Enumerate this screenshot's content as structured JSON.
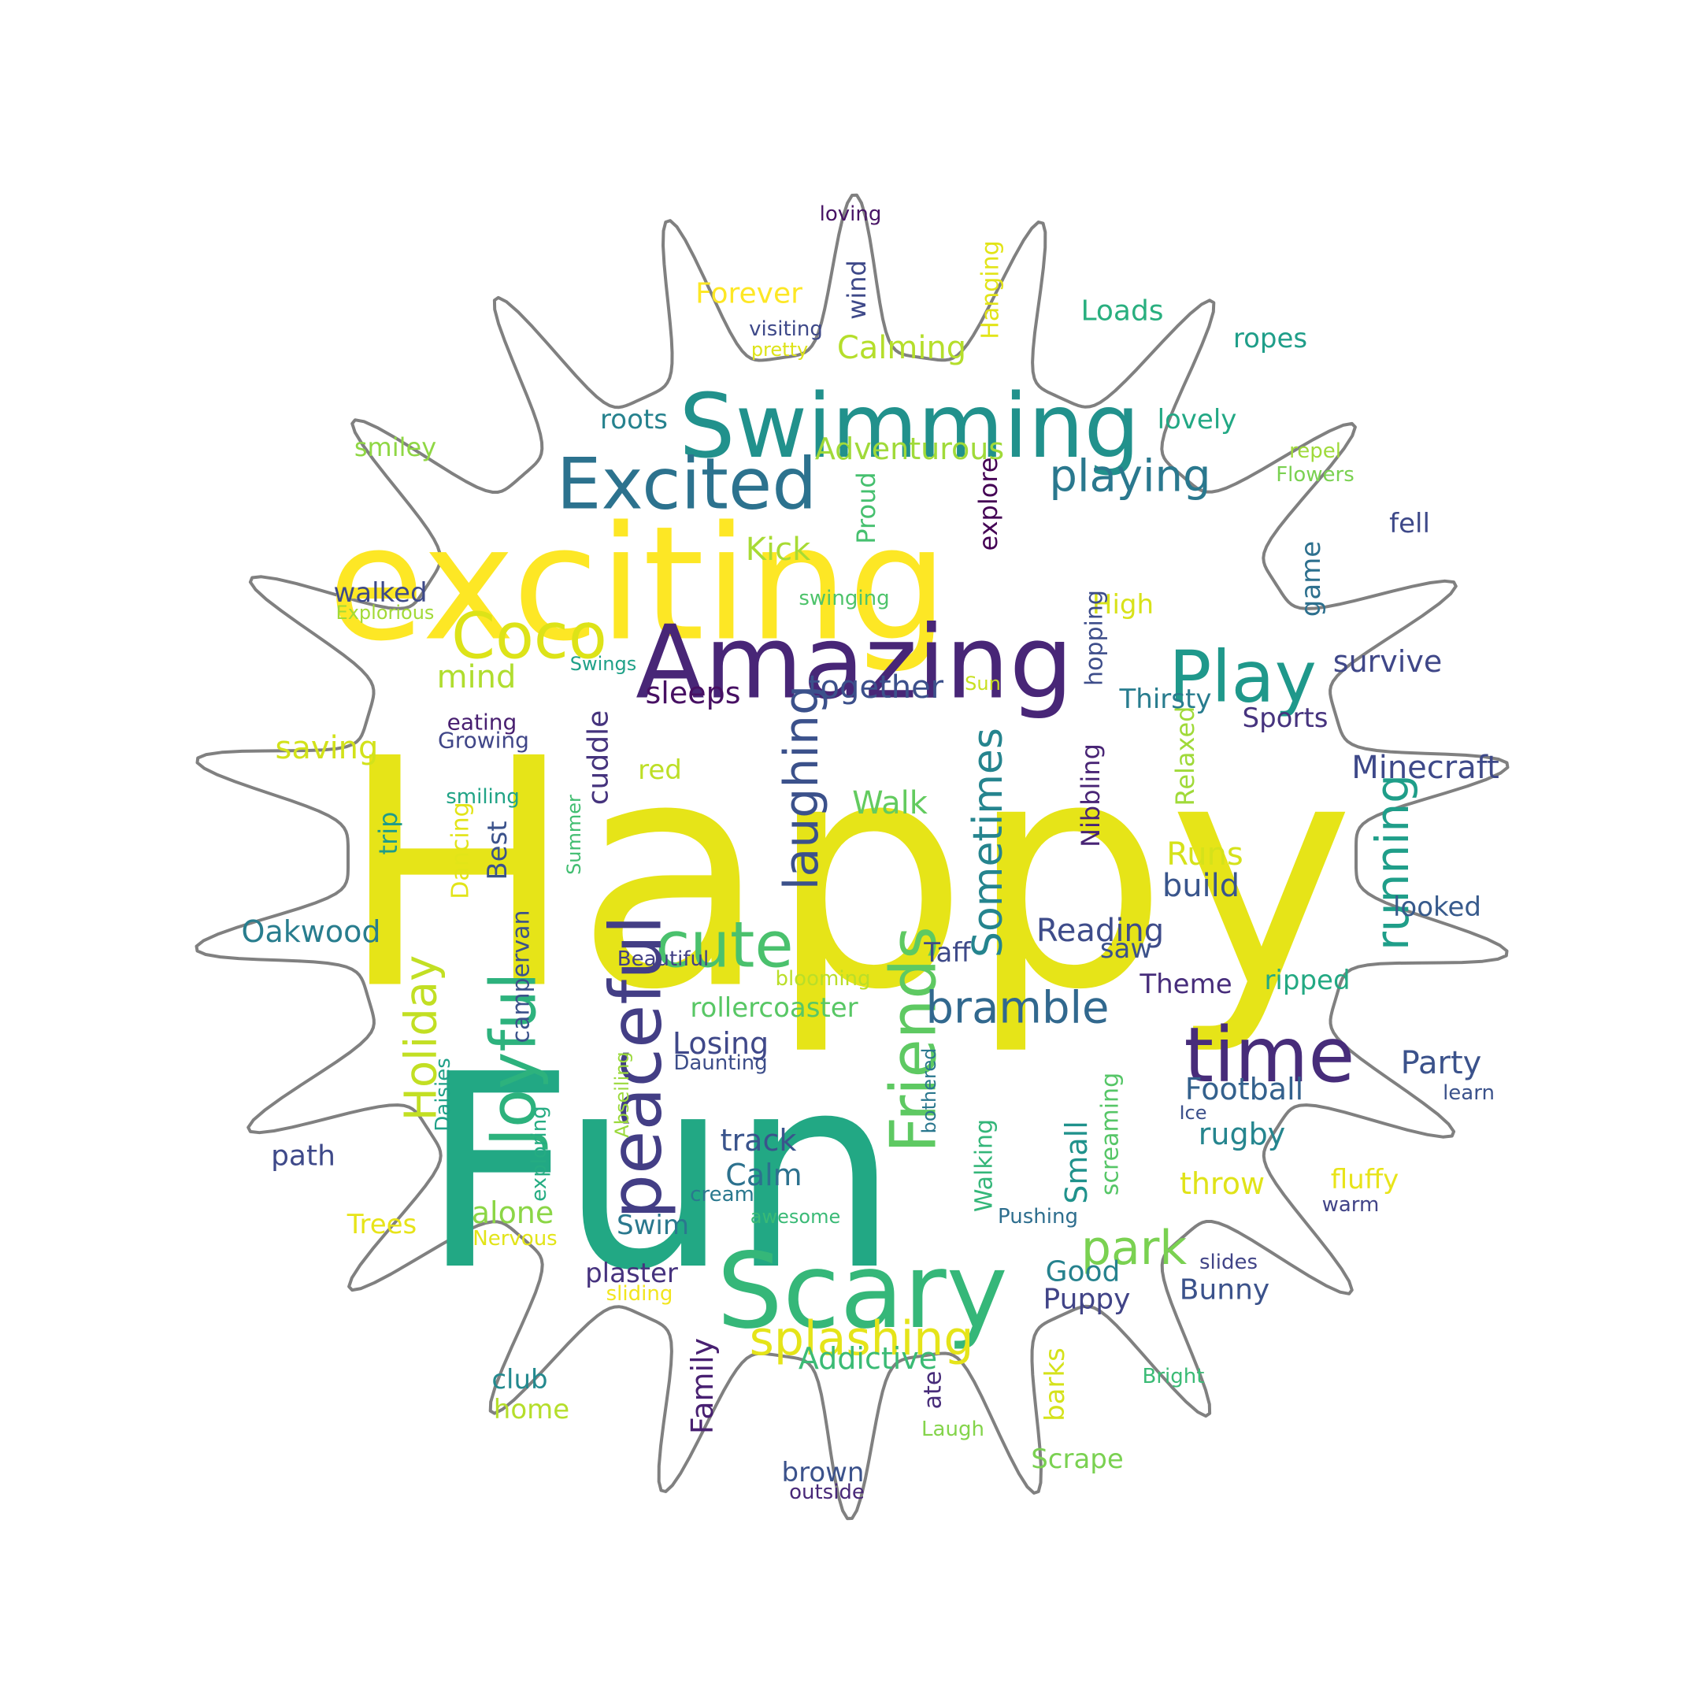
{
  "outline_color": "#808080",
  "words": [
    {
      "text": "Happy",
      "color": "#e6e418"
    },
    {
      "text": "Fun",
      "color": "#22a884"
    },
    {
      "text": "exciting",
      "color": "#fde725"
    },
    {
      "text": "Swimming",
      "color": "#21918c"
    },
    {
      "text": "Amazing",
      "color": "#482677"
    },
    {
      "text": "Scary",
      "color": "#35b779"
    },
    {
      "text": "Excited",
      "color": "#2c728e"
    },
    {
      "text": "Coco",
      "color": "#dde318"
    },
    {
      "text": "Play",
      "color": "#1f988b"
    },
    {
      "text": "cute",
      "color": "#4ac16d"
    },
    {
      "text": "time",
      "color": "#472c7a"
    },
    {
      "text": "peaceful",
      "color": "#433e85"
    },
    {
      "text": "Joyful",
      "color": "#2db27d"
    },
    {
      "text": "Friends",
      "color": "#5ec962"
    },
    {
      "text": "laughing",
      "color": "#3b518b"
    },
    {
      "text": "Sometimes",
      "color": "#25848e"
    },
    {
      "text": "running",
      "color": "#1f9e89"
    },
    {
      "text": "Holiday",
      "color": "#c2df23"
    },
    {
      "text": "bramble",
      "color": "#31688e"
    },
    {
      "text": "park",
      "color": "#7ad151"
    },
    {
      "text": "splashing",
      "color": "#e5e419"
    },
    {
      "text": "playing",
      "color": "#2a788e"
    },
    {
      "text": "Adventurous",
      "color": "#a0da39"
    },
    {
      "text": "Calming",
      "color": "#b5de2b"
    },
    {
      "text": "Forever",
      "color": "#fde725"
    },
    {
      "text": "Loads",
      "color": "#29af7f"
    },
    {
      "text": "ropes",
      "color": "#1f9e89"
    },
    {
      "text": "lovely",
      "color": "#22a884"
    },
    {
      "text": "roots",
      "color": "#26828e"
    },
    {
      "text": "smiley",
      "color": "#8fd744"
    },
    {
      "text": "repel",
      "color": "#9fda3a"
    },
    {
      "text": "Flowers",
      "color": "#7ad151"
    },
    {
      "text": "fell",
      "color": "#3e4989"
    },
    {
      "text": "Kick",
      "color": "#a8db34"
    },
    {
      "text": "Proud",
      "color": "#46c06f"
    },
    {
      "text": "explore",
      "color": "#440154"
    },
    {
      "text": "walked",
      "color": "#3e4a89"
    },
    {
      "text": "Explorious",
      "color": "#a2da37"
    },
    {
      "text": "swinging",
      "color": "#4ec36b"
    },
    {
      "text": "High",
      "color": "#d8e219"
    },
    {
      "text": "game",
      "color": "#2d708e"
    },
    {
      "text": "survive",
      "color": "#3f4788"
    },
    {
      "text": "mind",
      "color": "#b0dd2f"
    },
    {
      "text": "Swings",
      "color": "#1fa188"
    },
    {
      "text": "sleeps",
      "color": "#471063"
    },
    {
      "text": "together",
      "color": "#3c508b"
    },
    {
      "text": "Sun",
      "color": "#c8e020"
    },
    {
      "text": "hopping",
      "color": "#3d4d8a"
    },
    {
      "text": "Thirsty",
      "color": "#287c8e"
    },
    {
      "text": "Sports",
      "color": "#46337e"
    },
    {
      "text": "eating",
      "color": "#481f70"
    },
    {
      "text": "Growing",
      "color": "#404688"
    },
    {
      "text": "saving",
      "color": "#d2e21b"
    },
    {
      "text": "cuddle",
      "color": "#45337d"
    },
    {
      "text": "red",
      "color": "#bddf26"
    },
    {
      "text": "Minecraft",
      "color": "#3e4989"
    },
    {
      "text": "Relaxed",
      "color": "#a0da39"
    },
    {
      "text": "Nibbling",
      "color": "#482475"
    },
    {
      "text": "smiling",
      "color": "#20a386"
    },
    {
      "text": "trip",
      "color": "#1e9b8a"
    },
    {
      "text": "Dancing",
      "color": "#e2e418"
    },
    {
      "text": "Best",
      "color": "#3b528b"
    },
    {
      "text": "Summer",
      "color": "#42be71"
    },
    {
      "text": "Walk",
      "color": "#63cb5f"
    },
    {
      "text": "Runs",
      "color": "#d5e21a"
    },
    {
      "text": "build",
      "color": "#39558c"
    },
    {
      "text": "looked",
      "color": "#375a8c"
    },
    {
      "text": "Oakwood",
      "color": "#287d8e"
    },
    {
      "text": "campervan",
      "color": "#3b528b"
    },
    {
      "text": "Reading",
      "color": "#3e4c8a"
    },
    {
      "text": "Beautiful",
      "color": "#424086"
    },
    {
      "text": "Taff",
      "color": "#3e4a89"
    },
    {
      "text": "saw",
      "color": "#3b528b"
    },
    {
      "text": "Theme",
      "color": "#472d7b"
    },
    {
      "text": "ripped",
      "color": "#23a983"
    },
    {
      "text": "blooming",
      "color": "#bade28"
    },
    {
      "text": "rollercoaster",
      "color": "#58c765"
    },
    {
      "text": "Losing",
      "color": "#3f4889"
    },
    {
      "text": "Daunting",
      "color": "#3d4e8a"
    },
    {
      "text": "Party",
      "color": "#3b528b"
    },
    {
      "text": "learn",
      "color": "#3b528b"
    },
    {
      "text": "Daisies",
      "color": "#1fa088"
    },
    {
      "text": "Abseiling",
      "color": "#9bd93c"
    },
    {
      "text": "bothered",
      "color": "#2a778e"
    },
    {
      "text": "Football",
      "color": "#34618d"
    },
    {
      "text": "Ice",
      "color": "#3c508b"
    },
    {
      "text": "path",
      "color": "#3e4989"
    },
    {
      "text": "exploring",
      "color": "#25ac82"
    },
    {
      "text": "track",
      "color": "#3a548c"
    },
    {
      "text": "Walking",
      "color": "#34b679"
    },
    {
      "text": "Small",
      "color": "#20928c"
    },
    {
      "text": "screaming",
      "color": "#56c667"
    },
    {
      "text": "rugby",
      "color": "#25858e"
    },
    {
      "text": "Calm",
      "color": "#2c718e"
    },
    {
      "text": "cream",
      "color": "#2a788e"
    },
    {
      "text": "throw",
      "color": "#e0e318"
    },
    {
      "text": "fluffy",
      "color": "#e8e419"
    },
    {
      "text": "warm",
      "color": "#414487"
    },
    {
      "text": "alone",
      "color": "#8bd646"
    },
    {
      "text": "Trees",
      "color": "#e7e419"
    },
    {
      "text": "Nervous",
      "color": "#e2e418"
    },
    {
      "text": "Swim",
      "color": "#2a788e"
    },
    {
      "text": "awesome",
      "color": "#3aba76"
    },
    {
      "text": "Pushing",
      "color": "#2e6e8e"
    },
    {
      "text": "slides",
      "color": "#414487"
    },
    {
      "text": "plaster",
      "color": "#46327e"
    },
    {
      "text": "sliding",
      "color": "#f2e51d"
    },
    {
      "text": "Good",
      "color": "#26828e"
    },
    {
      "text": "Puppy",
      "color": "#414487"
    },
    {
      "text": "Bunny",
      "color": "#3b528b"
    },
    {
      "text": "Addictive",
      "color": "#3bbb75"
    },
    {
      "text": "Family",
      "color": "#482071"
    },
    {
      "text": "barks",
      "color": "#d5e21a"
    },
    {
      "text": "club",
      "color": "#23898e"
    },
    {
      "text": "home",
      "color": "#b5de2b"
    },
    {
      "text": "ate",
      "color": "#472c7a"
    },
    {
      "text": "Laugh",
      "color": "#84d44b"
    },
    {
      "text": "Bright",
      "color": "#3bbb75"
    },
    {
      "text": "Scrape",
      "color": "#7ad151"
    },
    {
      "text": "brown",
      "color": "#3b528b"
    },
    {
      "text": "outside",
      "color": "#482878"
    },
    {
      "text": "loving",
      "color": "#471365"
    },
    {
      "text": "wind",
      "color": "#3e4989"
    },
    {
      "text": "Hanging",
      "color": "#e2e418"
    },
    {
      "text": "visiting",
      "color": "#3e4989"
    },
    {
      "text": "pretty",
      "color": "#dde318"
    }
  ]
}
